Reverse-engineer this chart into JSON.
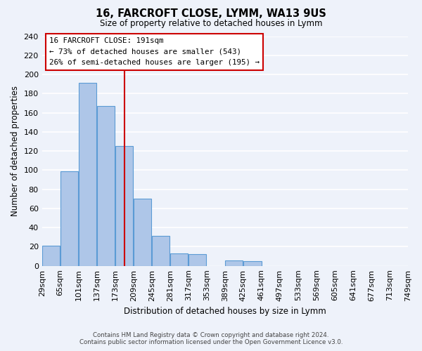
{
  "title": "16, FARCROFT CLOSE, LYMM, WA13 9US",
  "subtitle": "Size of property relative to detached houses in Lymm",
  "xlabel": "Distribution of detached houses by size in Lymm",
  "ylabel": "Number of detached properties",
  "bar_edges": [
    29,
    65,
    101,
    137,
    173,
    209,
    245,
    281,
    317,
    353,
    389,
    425,
    461,
    497,
    533,
    569,
    605,
    641,
    677,
    713,
    749
  ],
  "bar_heights": [
    21,
    99,
    191,
    167,
    125,
    70,
    31,
    13,
    12,
    0,
    6,
    5,
    0,
    0,
    0,
    0,
    0,
    0,
    0,
    0
  ],
  "bar_color": "#aec6e8",
  "bar_edge_color": "#5b9bd5",
  "property_line_x": 191,
  "property_line_color": "#cc0000",
  "ylim": [
    0,
    240
  ],
  "yticks": [
    0,
    20,
    40,
    60,
    80,
    100,
    120,
    140,
    160,
    180,
    200,
    220,
    240
  ],
  "annotation_title": "16 FARCROFT CLOSE: 191sqm",
  "annotation_line1": "← 73% of detached houses are smaller (543)",
  "annotation_line2": "26% of semi-detached houses are larger (195) →",
  "annotation_box_color": "#ffffff",
  "annotation_box_edge_color": "#cc0000",
  "footer_line1": "Contains HM Land Registry data © Crown copyright and database right 2024.",
  "footer_line2": "Contains public sector information licensed under the Open Government Licence v3.0.",
  "background_color": "#eef2fa",
  "grid_color": "#ffffff",
  "tick_labels": [
    "29sqm",
    "65sqm",
    "101sqm",
    "137sqm",
    "173sqm",
    "209sqm",
    "245sqm",
    "281sqm",
    "317sqm",
    "353sqm",
    "389sqm",
    "425sqm",
    "461sqm",
    "497sqm",
    "533sqm",
    "569sqm",
    "605sqm",
    "641sqm",
    "677sqm",
    "713sqm",
    "749sqm"
  ]
}
